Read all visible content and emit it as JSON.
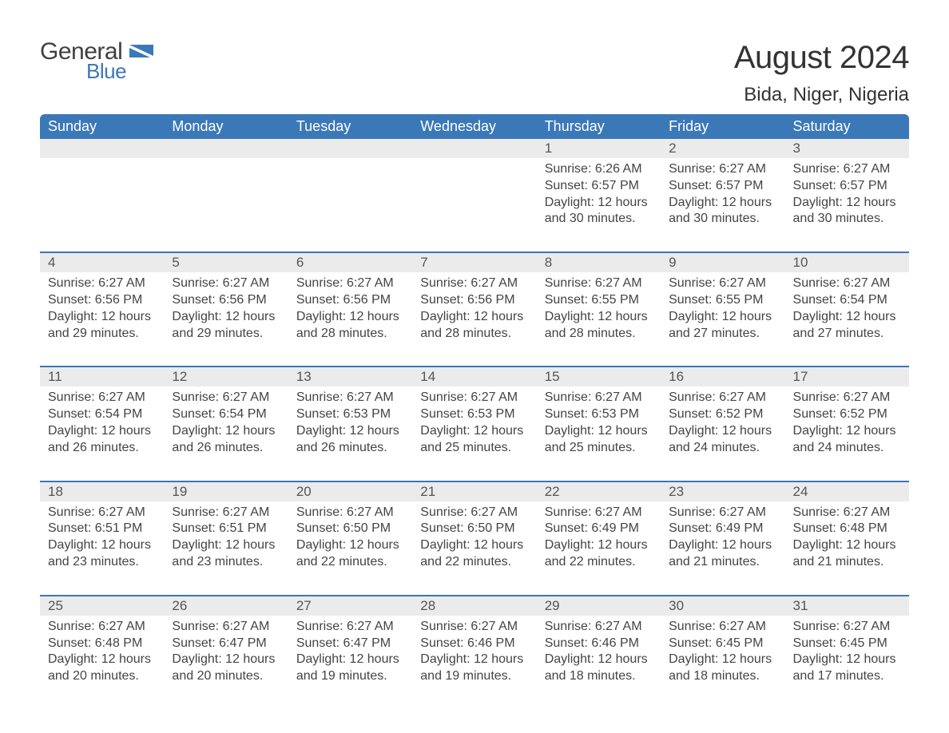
{
  "logo": {
    "word1": "General",
    "word2": "Blue",
    "flag_color": "#3b78b8",
    "text_color_dark": "#404040"
  },
  "title": {
    "month_year": "August 2024",
    "location": "Bida, Niger, Nigeria"
  },
  "colors": {
    "header_bg": "#3b78b8",
    "header_text": "#ffffff",
    "daynum_bg": "#ebebeb",
    "daynum_border": "#3b78b8",
    "body_text": "#444444",
    "page_bg": "#ffffff"
  },
  "fonts": {
    "title_pt": 40,
    "location_pt": 24,
    "dow_pt": 18,
    "daynum_pt": 17,
    "detail_pt": 16
  },
  "days_of_week": [
    "Sunday",
    "Monday",
    "Tuesday",
    "Wednesday",
    "Thursday",
    "Friday",
    "Saturday"
  ],
  "weeks": [
    [
      null,
      null,
      null,
      null,
      {
        "n": "1",
        "sunrise": "Sunrise: 6:26 AM",
        "sunset": "Sunset: 6:57 PM",
        "day1": "Daylight: 12 hours",
        "day2": "and 30 minutes."
      },
      {
        "n": "2",
        "sunrise": "Sunrise: 6:27 AM",
        "sunset": "Sunset: 6:57 PM",
        "day1": "Daylight: 12 hours",
        "day2": "and 30 minutes."
      },
      {
        "n": "3",
        "sunrise": "Sunrise: 6:27 AM",
        "sunset": "Sunset: 6:57 PM",
        "day1": "Daylight: 12 hours",
        "day2": "and 30 minutes."
      }
    ],
    [
      {
        "n": "4",
        "sunrise": "Sunrise: 6:27 AM",
        "sunset": "Sunset: 6:56 PM",
        "day1": "Daylight: 12 hours",
        "day2": "and 29 minutes."
      },
      {
        "n": "5",
        "sunrise": "Sunrise: 6:27 AM",
        "sunset": "Sunset: 6:56 PM",
        "day1": "Daylight: 12 hours",
        "day2": "and 29 minutes."
      },
      {
        "n": "6",
        "sunrise": "Sunrise: 6:27 AM",
        "sunset": "Sunset: 6:56 PM",
        "day1": "Daylight: 12 hours",
        "day2": "and 28 minutes."
      },
      {
        "n": "7",
        "sunrise": "Sunrise: 6:27 AM",
        "sunset": "Sunset: 6:56 PM",
        "day1": "Daylight: 12 hours",
        "day2": "and 28 minutes."
      },
      {
        "n": "8",
        "sunrise": "Sunrise: 6:27 AM",
        "sunset": "Sunset: 6:55 PM",
        "day1": "Daylight: 12 hours",
        "day2": "and 28 minutes."
      },
      {
        "n": "9",
        "sunrise": "Sunrise: 6:27 AM",
        "sunset": "Sunset: 6:55 PM",
        "day1": "Daylight: 12 hours",
        "day2": "and 27 minutes."
      },
      {
        "n": "10",
        "sunrise": "Sunrise: 6:27 AM",
        "sunset": "Sunset: 6:54 PM",
        "day1": "Daylight: 12 hours",
        "day2": "and 27 minutes."
      }
    ],
    [
      {
        "n": "11",
        "sunrise": "Sunrise: 6:27 AM",
        "sunset": "Sunset: 6:54 PM",
        "day1": "Daylight: 12 hours",
        "day2": "and 26 minutes."
      },
      {
        "n": "12",
        "sunrise": "Sunrise: 6:27 AM",
        "sunset": "Sunset: 6:54 PM",
        "day1": "Daylight: 12 hours",
        "day2": "and 26 minutes."
      },
      {
        "n": "13",
        "sunrise": "Sunrise: 6:27 AM",
        "sunset": "Sunset: 6:53 PM",
        "day1": "Daylight: 12 hours",
        "day2": "and 26 minutes."
      },
      {
        "n": "14",
        "sunrise": "Sunrise: 6:27 AM",
        "sunset": "Sunset: 6:53 PM",
        "day1": "Daylight: 12 hours",
        "day2": "and 25 minutes."
      },
      {
        "n": "15",
        "sunrise": "Sunrise: 6:27 AM",
        "sunset": "Sunset: 6:53 PM",
        "day1": "Daylight: 12 hours",
        "day2": "and 25 minutes."
      },
      {
        "n": "16",
        "sunrise": "Sunrise: 6:27 AM",
        "sunset": "Sunset: 6:52 PM",
        "day1": "Daylight: 12 hours",
        "day2": "and 24 minutes."
      },
      {
        "n": "17",
        "sunrise": "Sunrise: 6:27 AM",
        "sunset": "Sunset: 6:52 PM",
        "day1": "Daylight: 12 hours",
        "day2": "and 24 minutes."
      }
    ],
    [
      {
        "n": "18",
        "sunrise": "Sunrise: 6:27 AM",
        "sunset": "Sunset: 6:51 PM",
        "day1": "Daylight: 12 hours",
        "day2": "and 23 minutes."
      },
      {
        "n": "19",
        "sunrise": "Sunrise: 6:27 AM",
        "sunset": "Sunset: 6:51 PM",
        "day1": "Daylight: 12 hours",
        "day2": "and 23 minutes."
      },
      {
        "n": "20",
        "sunrise": "Sunrise: 6:27 AM",
        "sunset": "Sunset: 6:50 PM",
        "day1": "Daylight: 12 hours",
        "day2": "and 22 minutes."
      },
      {
        "n": "21",
        "sunrise": "Sunrise: 6:27 AM",
        "sunset": "Sunset: 6:50 PM",
        "day1": "Daylight: 12 hours",
        "day2": "and 22 minutes."
      },
      {
        "n": "22",
        "sunrise": "Sunrise: 6:27 AM",
        "sunset": "Sunset: 6:49 PM",
        "day1": "Daylight: 12 hours",
        "day2": "and 22 minutes."
      },
      {
        "n": "23",
        "sunrise": "Sunrise: 6:27 AM",
        "sunset": "Sunset: 6:49 PM",
        "day1": "Daylight: 12 hours",
        "day2": "and 21 minutes."
      },
      {
        "n": "24",
        "sunrise": "Sunrise: 6:27 AM",
        "sunset": "Sunset: 6:48 PM",
        "day1": "Daylight: 12 hours",
        "day2": "and 21 minutes."
      }
    ],
    [
      {
        "n": "25",
        "sunrise": "Sunrise: 6:27 AM",
        "sunset": "Sunset: 6:48 PM",
        "day1": "Daylight: 12 hours",
        "day2": "and 20 minutes."
      },
      {
        "n": "26",
        "sunrise": "Sunrise: 6:27 AM",
        "sunset": "Sunset: 6:47 PM",
        "day1": "Daylight: 12 hours",
        "day2": "and 20 minutes."
      },
      {
        "n": "27",
        "sunrise": "Sunrise: 6:27 AM",
        "sunset": "Sunset: 6:47 PM",
        "day1": "Daylight: 12 hours",
        "day2": "and 19 minutes."
      },
      {
        "n": "28",
        "sunrise": "Sunrise: 6:27 AM",
        "sunset": "Sunset: 6:46 PM",
        "day1": "Daylight: 12 hours",
        "day2": "and 19 minutes."
      },
      {
        "n": "29",
        "sunrise": "Sunrise: 6:27 AM",
        "sunset": "Sunset: 6:46 PM",
        "day1": "Daylight: 12 hours",
        "day2": "and 18 minutes."
      },
      {
        "n": "30",
        "sunrise": "Sunrise: 6:27 AM",
        "sunset": "Sunset: 6:45 PM",
        "day1": "Daylight: 12 hours",
        "day2": "and 18 minutes."
      },
      {
        "n": "31",
        "sunrise": "Sunrise: 6:27 AM",
        "sunset": "Sunset: 6:45 PM",
        "day1": "Daylight: 12 hours",
        "day2": "and 17 minutes."
      }
    ]
  ]
}
